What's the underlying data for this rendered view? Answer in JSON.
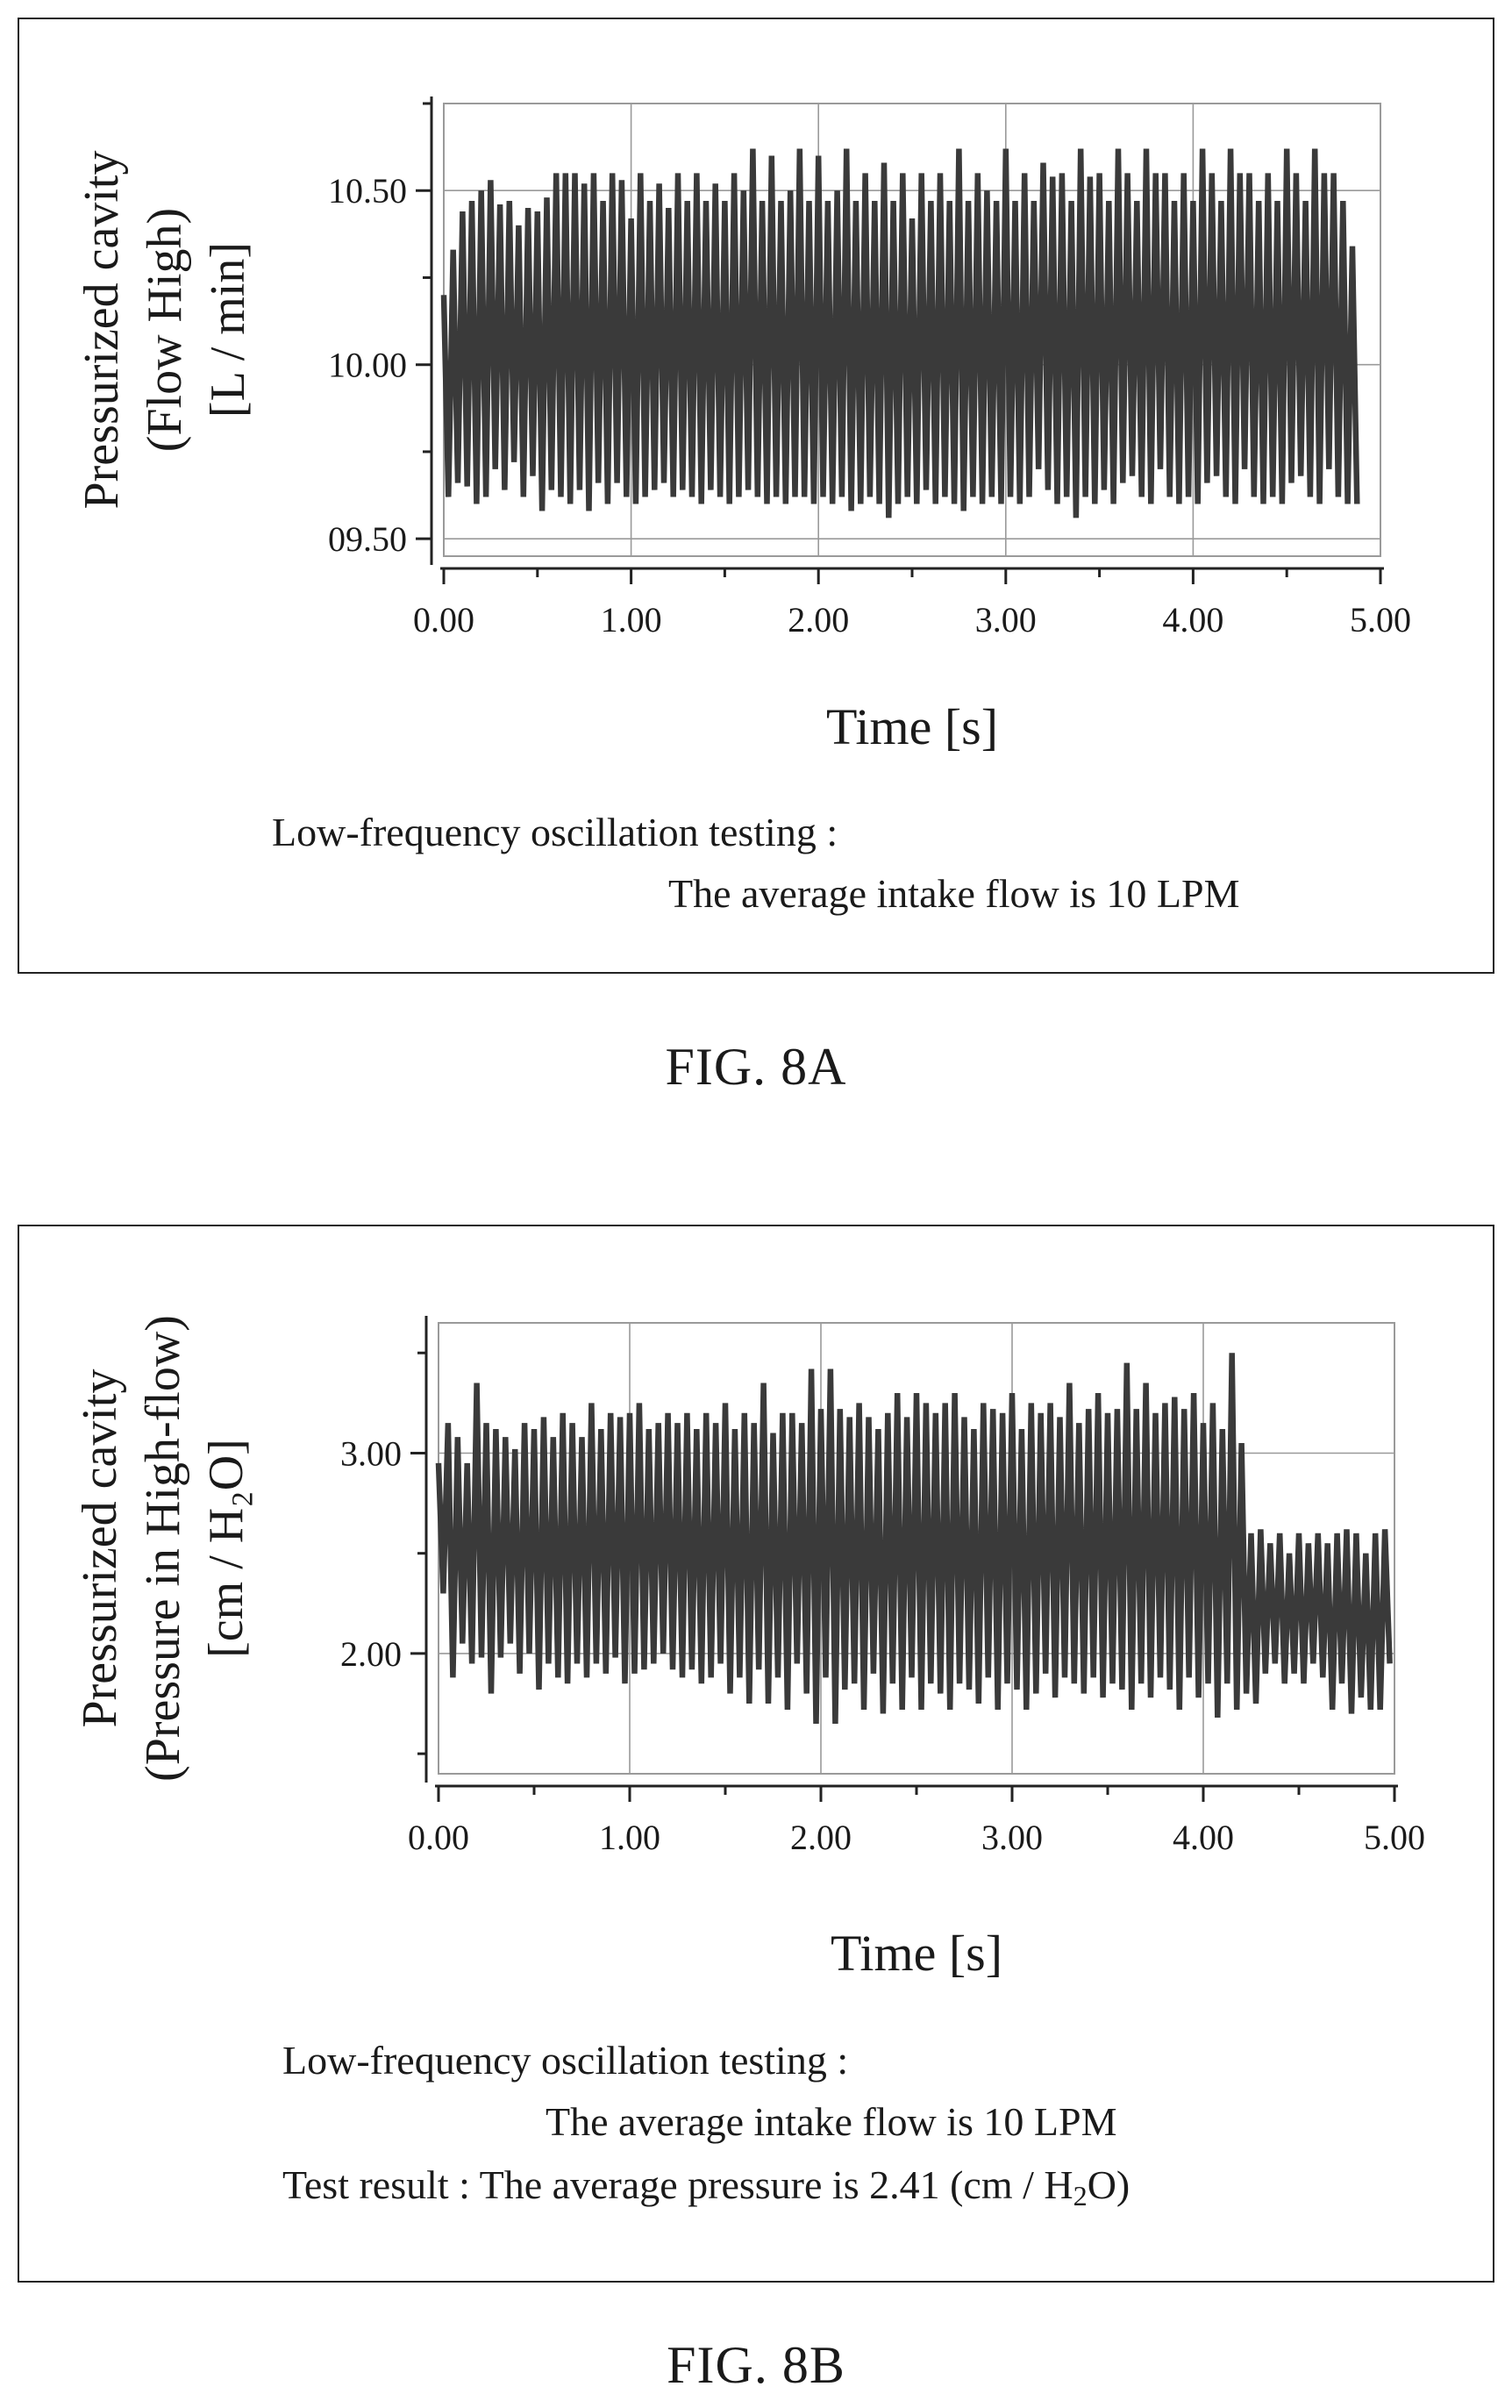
{
  "figures": {
    "a": {
      "label": "FIG. 8A",
      "caption_line1": "Low-frequency oscillation testing :",
      "caption_line2": "The average intake flow is 10 LPM"
    },
    "b": {
      "label": "FIG. 8B",
      "caption_line1": "Low-frequency oscillation testing :",
      "caption_line2": "The average intake flow is 10 LPM",
      "result_prefix": "Test result :  The average pressure is 2.41 (cm / H",
      "result_sub": "2",
      "result_suffix": "O)"
    }
  },
  "chart_data": [
    {
      "type": "line",
      "xlabel": "Time [s]",
      "ylabel": [
        "Pressurized cavity",
        "(Flow High)",
        "[L / min]"
      ],
      "xlim": [
        0,
        5
      ],
      "ylim": [
        9.45,
        10.75
      ],
      "x_ticks": [
        "0.00",
        "1.00",
        "2.00",
        "3.00",
        "4.00",
        "5.00"
      ],
      "y_ticks": [
        {
          "value": 10.5,
          "label": "10.50"
        },
        {
          "value": 10.0,
          "label": "10.00"
        },
        {
          "value": 9.5,
          "label": "09.50"
        }
      ],
      "grid": true,
      "series": [
        {
          "color": "#3a3a3a",
          "x_start": 0,
          "x_step": 0.025,
          "values": [
            10.2,
            9.62,
            10.33,
            9.66,
            10.44,
            9.65,
            10.47,
            9.6,
            10.5,
            9.62,
            10.53,
            9.7,
            10.46,
            9.64,
            10.47,
            9.72,
            10.4,
            9.62,
            10.45,
            9.68,
            10.44,
            9.58,
            10.48,
            9.64,
            10.55,
            9.62,
            10.55,
            9.6,
            10.55,
            9.64,
            10.52,
            9.58,
            10.55,
            9.66,
            10.47,
            9.6,
            10.55,
            9.66,
            10.53,
            9.62,
            10.42,
            9.6,
            10.55,
            9.62,
            10.47,
            9.64,
            10.52,
            9.66,
            10.45,
            9.62,
            10.55,
            9.64,
            10.47,
            9.62,
            10.55,
            9.6,
            10.47,
            9.64,
            10.52,
            9.62,
            10.47,
            9.6,
            10.55,
            9.62,
            10.5,
            9.64,
            10.62,
            9.62,
            10.47,
            9.6,
            10.6,
            9.62,
            10.47,
            9.6,
            10.5,
            9.62,
            10.62,
            9.62,
            10.47,
            9.6,
            10.6,
            9.62,
            10.47,
            9.6,
            10.5,
            9.62,
            10.62,
            9.58,
            10.47,
            9.6,
            10.55,
            9.62,
            10.47,
            9.6,
            10.58,
            9.56,
            10.47,
            9.6,
            10.55,
            9.62,
            10.42,
            9.6,
            10.55,
            9.64,
            10.47,
            9.6,
            10.55,
            9.62,
            10.47,
            9.6,
            10.62,
            9.58,
            10.47,
            9.62,
            10.55,
            9.6,
            10.5,
            9.62,
            10.47,
            9.6,
            10.62,
            9.62,
            10.47,
            9.6,
            10.55,
            9.62,
            10.47,
            9.7,
            10.58,
            9.64,
            10.54,
            9.6,
            10.55,
            9.62,
            10.47,
            9.56,
            10.62,
            9.62,
            10.54,
            9.6,
            10.55,
            9.64,
            10.47,
            9.6,
            10.62,
            9.66,
            10.55,
            9.68,
            10.47,
            9.62,
            10.62,
            9.6,
            10.55,
            9.7,
            10.55,
            9.62,
            10.47,
            9.6,
            10.55,
            9.62,
            10.47,
            9.6,
            10.62,
            9.66,
            10.55,
            9.68,
            10.47,
            9.62,
            10.62,
            9.6,
            10.55,
            9.7,
            10.55,
            9.62,
            10.47,
            9.6,
            10.55,
            9.62,
            10.47,
            9.6,
            10.62,
            9.66,
            10.55,
            9.68,
            10.47,
            9.62,
            10.62,
            9.6,
            10.55,
            9.7,
            10.55,
            9.62,
            10.47,
            9.6,
            10.34,
            9.6
          ]
        }
      ]
    },
    {
      "type": "line",
      "xlabel": "Time [s]",
      "ylabel": [
        "Pressurized cavity",
        "(Pressure in High-flow)",
        "[cm / H₂O]"
      ],
      "xlim": [
        0,
        5
      ],
      "ylim": [
        1.4,
        3.65
      ],
      "x_ticks": [
        "0.00",
        "1.00",
        "2.00",
        "3.00",
        "4.00",
        "5.00"
      ],
      "y_ticks": [
        {
          "value": 3.0,
          "label": "3.00"
        },
        {
          "value": 2.0,
          "label": "2.00"
        }
      ],
      "grid": true,
      "series": [
        {
          "color": "#3a3a3a",
          "x_start": 0,
          "x_step": 0.025,
          "values": [
            2.95,
            2.3,
            3.15,
            1.88,
            3.08,
            2.05,
            2.95,
            1.95,
            3.35,
            1.98,
            3.15,
            1.8,
            3.12,
            1.98,
            3.08,
            2.05,
            3.02,
            1.9,
            3.15,
            2.0,
            3.12,
            1.82,
            3.18,
            1.95,
            3.08,
            1.88,
            3.2,
            1.85,
            3.15,
            1.95,
            3.08,
            1.88,
            3.25,
            1.95,
            3.12,
            1.9,
            3.2,
            1.98,
            3.18,
            1.85,
            3.2,
            1.9,
            3.25,
            1.92,
            3.12,
            1.95,
            3.15,
            2.0,
            3.2,
            1.92,
            3.15,
            1.88,
            3.2,
            1.92,
            3.12,
            1.85,
            3.2,
            1.88,
            3.15,
            1.95,
            3.25,
            1.8,
            3.12,
            1.88,
            3.2,
            1.75,
            3.15,
            1.92,
            3.35,
            1.75,
            3.1,
            1.88,
            3.2,
            1.72,
            3.2,
            1.95,
            3.15,
            1.8,
            3.42,
            1.65,
            3.22,
            1.88,
            3.42,
            1.65,
            3.22,
            1.82,
            3.18,
            1.85,
            3.25,
            1.72,
            3.18,
            1.9,
            3.12,
            1.7,
            3.2,
            1.85,
            3.3,
            1.72,
            3.18,
            1.88,
            3.3,
            1.72,
            3.25,
            1.85,
            3.2,
            1.8,
            3.25,
            1.72,
            3.3,
            1.85,
            3.18,
            1.82,
            3.12,
            1.75,
            3.25,
            1.88,
            3.22,
            1.72,
            3.2,
            1.85,
            3.3,
            1.82,
            3.12,
            1.72,
            3.25,
            1.8,
            3.2,
            1.9,
            3.25,
            1.78,
            3.18,
            1.88,
            3.35,
            1.85,
            3.15,
            1.8,
            3.22,
            1.88,
            3.3,
            1.78,
            3.2,
            1.85,
            3.22,
            1.82,
            3.45,
            1.72,
            3.22,
            1.85,
            3.35,
            1.78,
            3.2,
            1.88,
            3.25,
            1.82,
            3.28,
            1.72,
            3.22,
            1.88,
            3.3,
            1.78,
            3.15,
            1.85,
            3.25,
            1.68,
            3.12,
            1.85,
            3.5,
            1.72,
            3.05,
            1.8,
            2.6,
            1.75,
            2.62,
            1.9,
            2.55,
            1.95,
            2.6,
            1.85,
            2.5,
            1.9,
            2.6,
            1.85,
            2.55,
            1.95,
            2.6,
            1.88,
            2.55,
            1.72,
            2.6,
            1.85,
            2.62,
            1.7,
            2.6,
            1.78,
            2.5,
            1.72,
            2.6,
            1.72,
            2.62,
            1.95
          ]
        }
      ]
    }
  ]
}
